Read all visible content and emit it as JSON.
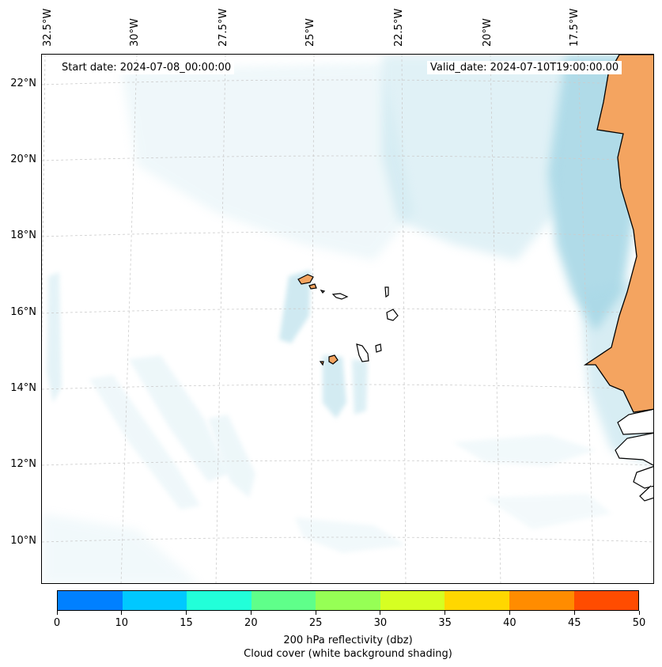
{
  "map": {
    "start_date": "Start date: 2024-07-08_00:00:00",
    "valid_date": "Valid_date: 2024-07-10T19:00:00.00",
    "lon_labels": [
      "32.5°W",
      "30°W",
      "27.5°W",
      "25°W",
      "22.5°W",
      "20°W",
      "17.5°W"
    ],
    "lat_labels": [
      "22°N",
      "20°N",
      "18°N",
      "16°N",
      "14°N",
      "12°N",
      "10°N"
    ],
    "land_color": "#f4a460",
    "cloud_color": "#a8d8e6",
    "gridline_color": "#cccccc"
  },
  "colorbar": {
    "ticks": [
      "0",
      "10",
      "15",
      "20",
      "25",
      "30",
      "35",
      "40",
      "45",
      "50"
    ],
    "colors": [
      "#0080ff",
      "#00c8ff",
      "#22ffd9",
      "#5fff8a",
      "#96ff55",
      "#d6ff22",
      "#ffd700",
      "#ff8c00",
      "#ff4c00"
    ],
    "label_line1": "200 hPa reflectivity (dbz)",
    "label_line2": "Cloud cover (white background shading)"
  }
}
